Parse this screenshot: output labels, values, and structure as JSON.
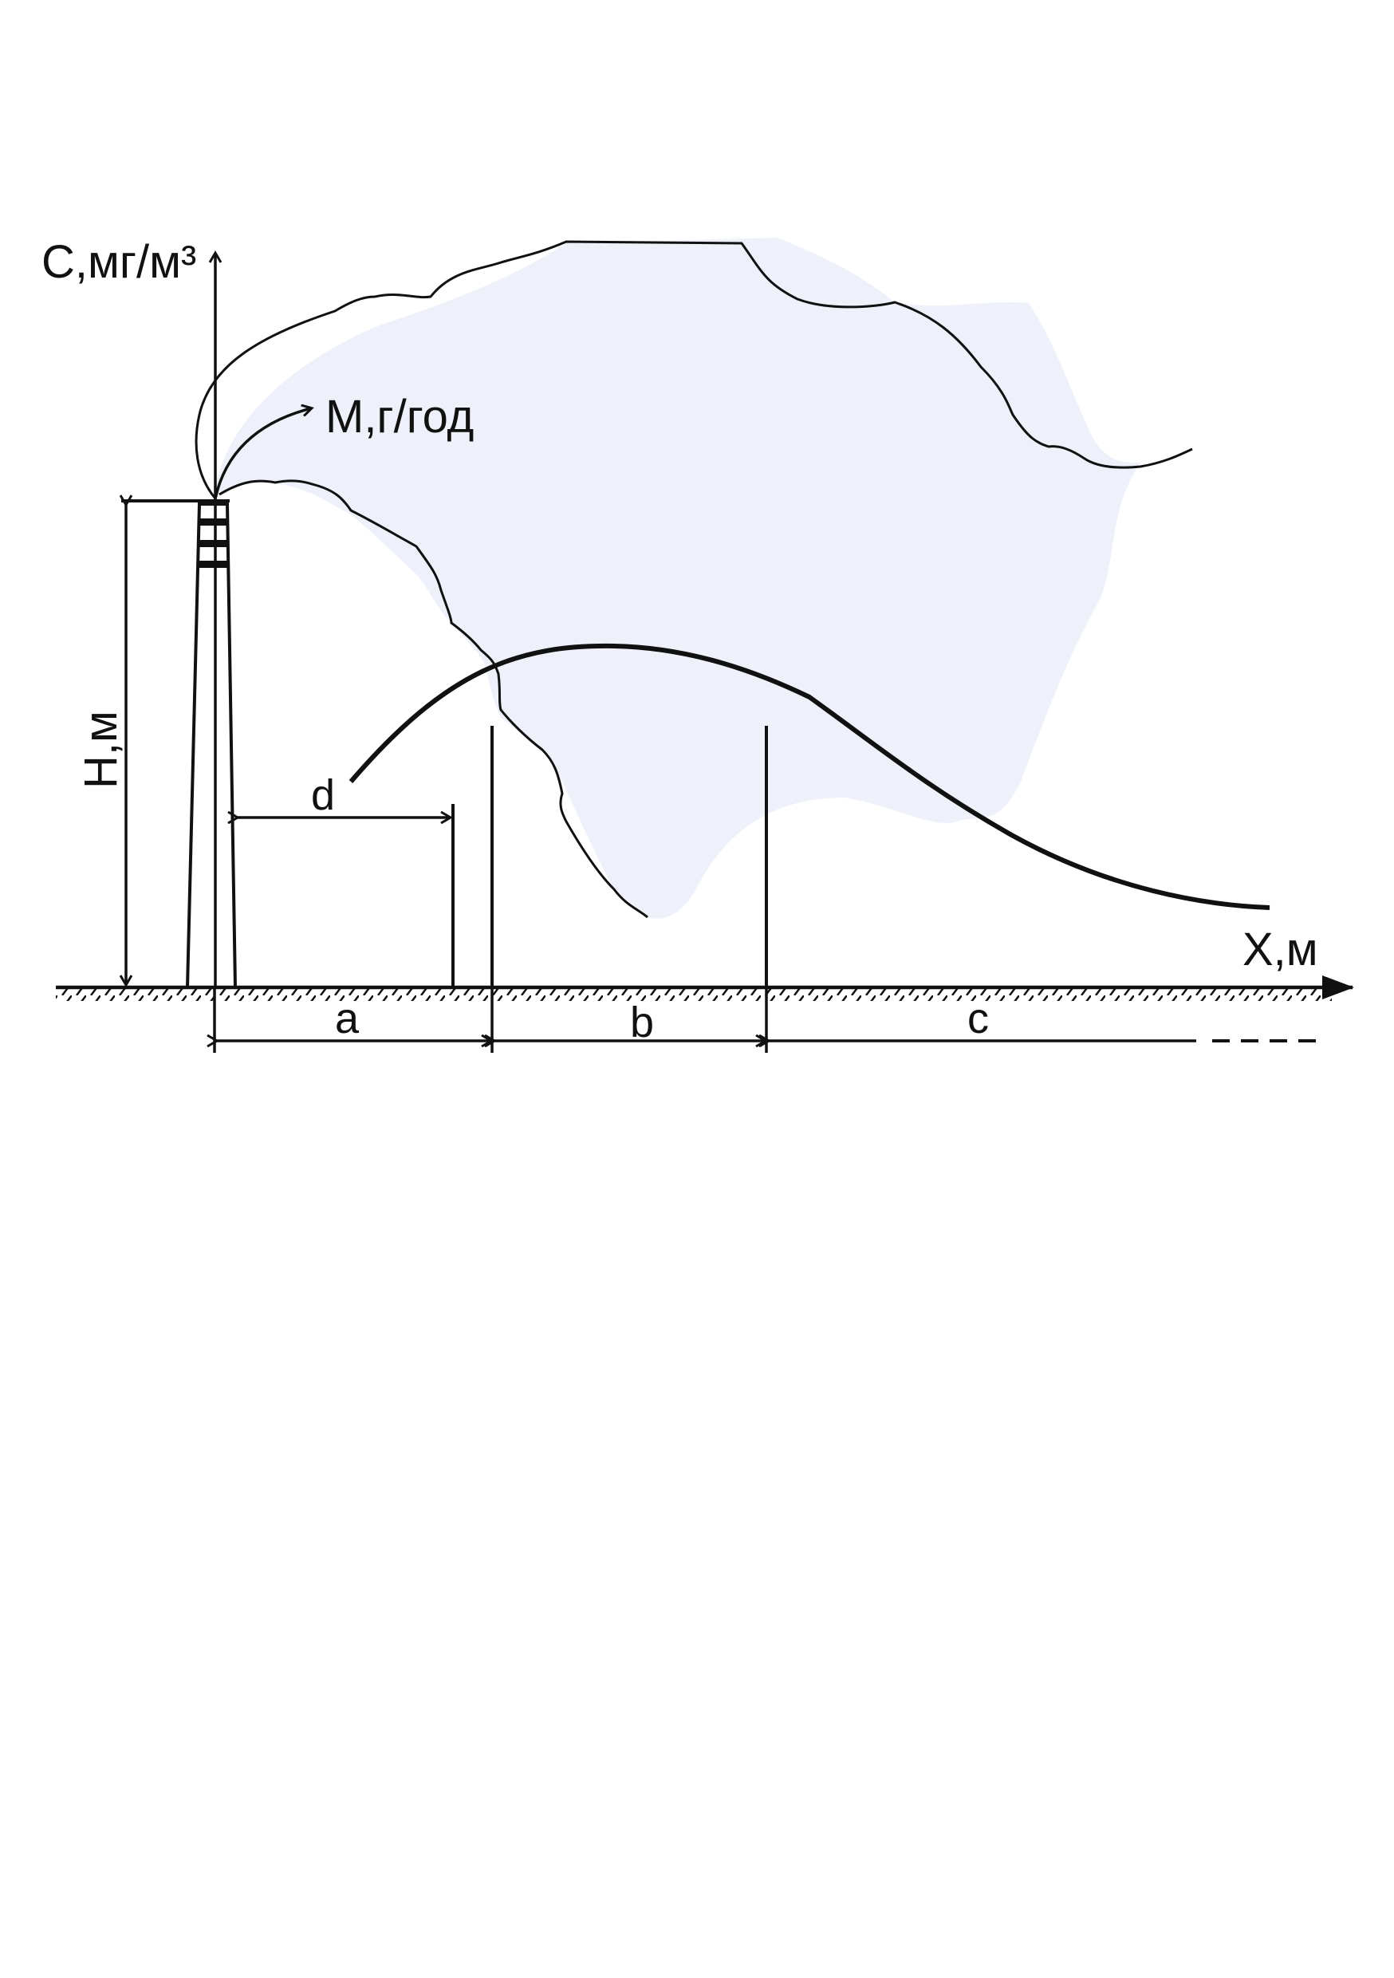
{
  "diagram": {
    "y_axis_label": "C,мг/м³",
    "x_axis_label": "X,м",
    "height_label": "H,м",
    "emission_label": "M,г/год",
    "zone_labels": {
      "a": "a",
      "b": "b",
      "c": "c",
      "d": "d"
    },
    "colors": {
      "plume_fill": "#eef1fa",
      "line": "#111111"
    }
  }
}
